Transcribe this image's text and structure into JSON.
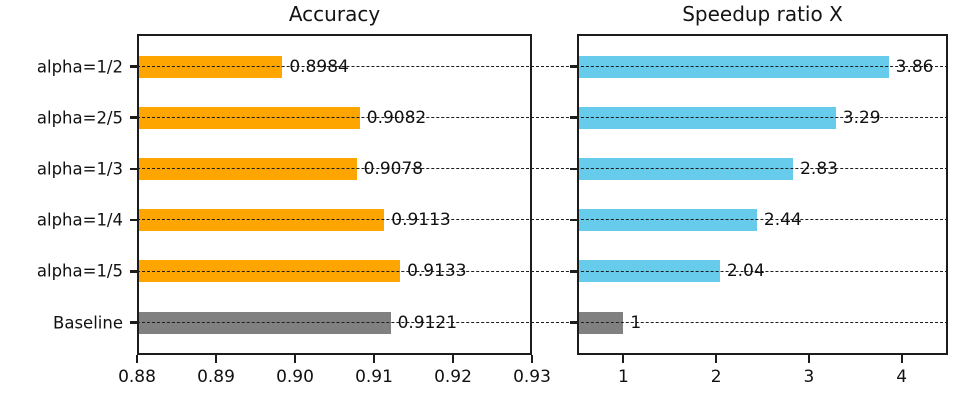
{
  "figure": {
    "background": "#ffffff",
    "axis_color": "#1c1c1c",
    "text_color": "#111111",
    "grid_style": "dashed",
    "orange": "#FFA500",
    "blue": "#67CCEC",
    "gray": "#808080"
  },
  "chart_data": [
    {
      "type": "bar",
      "orientation": "horizontal",
      "title": "Accuracy",
      "categories": [
        "alpha=1/2",
        "alpha=2/5",
        "alpha=1/3",
        "alpha=1/4",
        "alpha=1/5",
        "Baseline"
      ],
      "values": [
        0.8984,
        0.9082,
        0.9078,
        0.9113,
        0.9133,
        0.9121
      ],
      "value_labels": [
        "0.8984",
        "0.9082",
        "0.9078",
        "0.9113",
        "0.9133",
        "0.9121"
      ],
      "bar_colors": [
        "#FFA500",
        "#FFA500",
        "#FFA500",
        "#FFA500",
        "#FFA500",
        "#808080"
      ],
      "xlim": [
        0.88,
        0.93
      ],
      "xticks": [
        0.88,
        0.89,
        0.9,
        0.91,
        0.92,
        0.93
      ],
      "xtick_labels": [
        "0.88",
        "0.89",
        "0.90",
        "0.91",
        "0.92",
        "0.93"
      ],
      "grid": true,
      "legend": false
    },
    {
      "type": "bar",
      "orientation": "horizontal",
      "title": "Speedup ratio X",
      "categories": [
        "alpha=1/2",
        "alpha=2/5",
        "alpha=1/3",
        "alpha=1/4",
        "alpha=1/5",
        "Baseline"
      ],
      "values": [
        3.86,
        3.29,
        2.83,
        2.44,
        2.04,
        1
      ],
      "value_labels": [
        "3.86",
        "3.29",
        "2.83",
        "2.44",
        "2.04",
        "1"
      ],
      "bar_colors": [
        "#67CCEC",
        "#67CCEC",
        "#67CCEC",
        "#67CCEC",
        "#67CCEC",
        "#808080"
      ],
      "xlim": [
        0.5,
        4.5
      ],
      "xticks": [
        1,
        2,
        3,
        4
      ],
      "xtick_labels": [
        "1",
        "2",
        "3",
        "4"
      ],
      "grid": true,
      "legend": false
    }
  ]
}
